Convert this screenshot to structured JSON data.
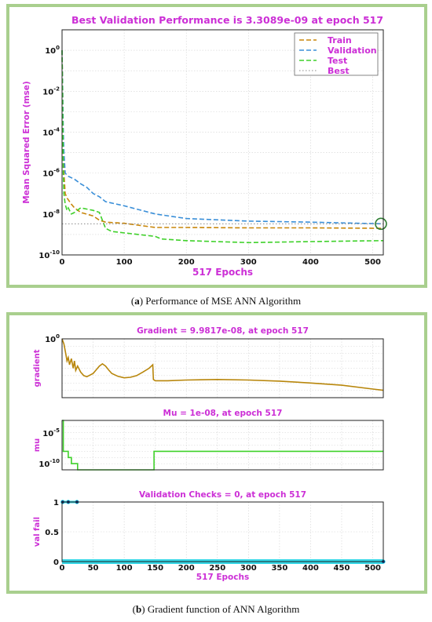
{
  "captions": {
    "a_label": "a",
    "a_text": " Performance of MSE ANN Algorithm",
    "b_label": "b",
    "b_text": " Gradient function of ANN Algorithm"
  },
  "chart_data": [
    {
      "type": "line",
      "title": "Best Validation Performance is 3.3089e-09 at epoch 517",
      "xlabel": "517 Epochs",
      "ylabel": "Mean Squared Error  (mse)",
      "xlim": [
        0,
        517
      ],
      "ylim": [
        1e-10,
        10
      ],
      "yscale": "log",
      "xticks": [
        0,
        100,
        200,
        300,
        400,
        500
      ],
      "yticks": [
        1,
        0.01,
        0.0001,
        1e-06,
        1e-08,
        1e-10
      ],
      "ytick_labels": [
        {
          "base": "10",
          "exp": "0"
        },
        {
          "base": "10",
          "exp": "-2"
        },
        {
          "base": "10",
          "exp": "-4"
        },
        {
          "base": "10",
          "exp": "-6"
        },
        {
          "base": "10",
          "exp": "-8"
        },
        {
          "base": "10",
          "exp": "-10"
        }
      ],
      "grid": true,
      "legend_position": "top-right",
      "series": [
        {
          "name": "Train",
          "color": "#c8860a",
          "dash": "dashed",
          "x": [
            0,
            1,
            2,
            3,
            5,
            8,
            10,
            15,
            20,
            30,
            50,
            60,
            70,
            100,
            150,
            200,
            300,
            400,
            517
          ],
          "y": [
            1,
            0.01,
            1e-05,
            1e-06,
            1e-07,
            6e-08,
            5e-08,
            3e-08,
            2e-08,
            1.2e-08,
            8e-09,
            5e-09,
            4e-09,
            3.5e-09,
            2.2e-09,
            2.2e-09,
            2.1e-09,
            2.1e-09,
            2e-09
          ]
        },
        {
          "name": "Validation",
          "color": "#3a8fd8",
          "dash": "dashed",
          "x": [
            0,
            1,
            2,
            3,
            5,
            8,
            10,
            20,
            30,
            40,
            50,
            60,
            70,
            100,
            150,
            200,
            300,
            400,
            517
          ],
          "y": [
            1,
            0.01,
            0.0001,
            1e-05,
            1e-06,
            8e-07,
            7e-07,
            5e-07,
            3e-07,
            2e-07,
            1e-07,
            7e-08,
            4e-08,
            2.5e-08,
            1e-08,
            6e-09,
            4.5e-09,
            4e-09,
            3.3089e-09
          ]
        },
        {
          "name": "Test",
          "color": "#3fd12a",
          "dash": "dashed",
          "x": [
            0,
            1,
            2,
            3,
            5,
            8,
            10,
            15,
            20,
            30,
            50,
            60,
            70,
            80,
            150,
            160,
            200,
            300,
            400,
            517
          ],
          "y": [
            1,
            0.001,
            1e-06,
            1e-07,
            3e-08,
            1.5e-08,
            2e-08,
            1e-08,
            1.2e-08,
            2e-08,
            1.5e-08,
            1.2e-08,
            2e-09,
            1.4e-09,
            8e-10,
            6e-10,
            5e-10,
            4e-10,
            4.5e-10,
            5e-10
          ]
        },
        {
          "name": "Best",
          "color": "#888888",
          "dash": "dotted",
          "x": [
            0,
            517
          ],
          "y": [
            3.3089e-09,
            3.3089e-09
          ]
        }
      ],
      "best_point": {
        "x": 517,
        "y": 3.3089e-09,
        "color": "#2e7d32"
      }
    },
    {
      "type": "line",
      "title": "Gradient = 9.9817e-08, at epoch 517",
      "ylabel": "gradient",
      "xlim": [
        0,
        517
      ],
      "ylim": [
        1e-08,
        1
      ],
      "yscale": "log",
      "yticks": [
        1
      ],
      "ytick_labels": [
        {
          "base": "10",
          "exp": "0"
        }
      ],
      "grid": true,
      "series": [
        {
          "name": "",
          "color": "#b8860b",
          "x": [
            0,
            3,
            6,
            8,
            10,
            12,
            15,
            18,
            20,
            22,
            25,
            30,
            35,
            40,
            50,
            60,
            65,
            70,
            75,
            80,
            90,
            100,
            110,
            120,
            130,
            140,
            146,
            147,
            150,
            170,
            200,
            250,
            300,
            350,
            400,
            450,
            500,
            517
          ],
          "y": [
            1,
            0.2,
            0.01,
            0.001,
            0.003,
            0.0003,
            0.002,
            0.0001,
            0.001,
            5e-05,
            0.0002,
            3e-05,
            1e-05,
            7e-06,
            2e-05,
            0.0002,
            0.0004,
            0.0002,
            6e-05,
            2e-05,
            8e-06,
            5e-06,
            6e-06,
            1e-05,
            3e-05,
            0.0001,
            0.0003,
            3e-06,
            2e-06,
            2e-06,
            2.5e-06,
            3e-06,
            2.5e-06,
            1.8e-06,
            1e-06,
            5e-07,
            1.5e-07,
            9.9817e-08
          ]
        }
      ]
    },
    {
      "type": "line",
      "title": "Mu = 1e-08, at epoch 517",
      "ylabel": "mu",
      "xlim": [
        0,
        517
      ],
      "ylim": [
        1e-11,
        0.001
      ],
      "yscale": "log",
      "yticks": [
        1e-05,
        1e-10
      ],
      "ytick_labels": [
        {
          "base": "10",
          "exp": "-5"
        },
        {
          "base": "10",
          "exp": "-10"
        }
      ],
      "grid": true,
      "series": [
        {
          "name": "",
          "color": "#3fd12a",
          "x": [
            0,
            2,
            2,
            10,
            10,
            15,
            15,
            25,
            25,
            148,
            148,
            517
          ],
          "y": [
            0.001,
            0.001,
            1e-08,
            1e-08,
            1e-09,
            1e-09,
            1e-10,
            1e-10,
            1e-11,
            1e-11,
            1e-08,
            1e-08
          ]
        }
      ]
    },
    {
      "type": "line",
      "title": "Validation Checks = 0, at epoch 517",
      "xlabel": "517 Epochs",
      "ylabel": "val fail",
      "xlim": [
        0,
        517
      ],
      "ylim": [
        0,
        1
      ],
      "yticks": [
        0,
        0.5,
        1
      ],
      "ytick_labels": [
        "0",
        "0.5",
        "1"
      ],
      "xticks": [
        0,
        50,
        100,
        150,
        200,
        250,
        300,
        350,
        400,
        450,
        500
      ],
      "grid": true,
      "series": [
        {
          "name": "",
          "color": "#33d6e6",
          "points": [
            [
              1,
              1
            ],
            [
              10,
              1
            ],
            [
              24,
              1
            ],
            [
              517,
              0
            ]
          ],
          "zero_band": [
            0,
            517
          ]
        }
      ]
    }
  ]
}
